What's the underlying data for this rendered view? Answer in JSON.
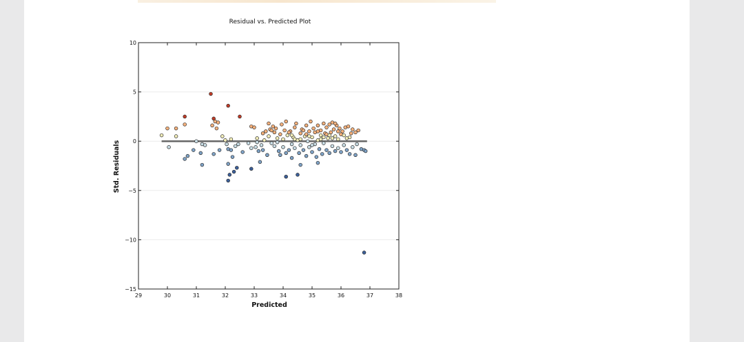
{
  "chart_data": {
    "type": "scatter",
    "title": "Residual vs. Predicted Plot",
    "xlabel": "Predicted",
    "ylabel": "Std. Residuals",
    "xlim": [
      29,
      38
    ],
    "ylim": [
      -15,
      10
    ],
    "xticks": [
      29,
      30,
      31,
      32,
      33,
      34,
      35,
      36,
      37,
      38
    ],
    "yticks": [
      10,
      5,
      0,
      -5,
      -10,
      -15
    ],
    "ytick_labels": [
      "10",
      "5",
      "0",
      "−5",
      "−10",
      "−15"
    ],
    "reference_line": {
      "y": 0,
      "x": [
        29.8,
        36.9
      ],
      "color": "#666666"
    },
    "color_scale": [
      "#3b5f9a",
      "#7fa3c7",
      "#c9dde5",
      "#f2edb9",
      "#f7b27d",
      "#c23b26"
    ],
    "points": [
      [
        29.8,
        0.6
      ],
      [
        30.0,
        1.3
      ],
      [
        30.05,
        -0.6
      ],
      [
        30.3,
        1.3
      ],
      [
        30.3,
        0.5
      ],
      [
        30.6,
        2.5
      ],
      [
        30.6,
        1.7
      ],
      [
        30.6,
        -1.8
      ],
      [
        30.7,
        -1.5
      ],
      [
        30.9,
        -0.9
      ],
      [
        31.0,
        0.0
      ],
      [
        31.15,
        -1.2
      ],
      [
        31.2,
        -2.4
      ],
      [
        31.2,
        -0.3
      ],
      [
        31.3,
        -0.4
      ],
      [
        31.5,
        4.8
      ],
      [
        31.55,
        1.6
      ],
      [
        31.6,
        -1.3
      ],
      [
        31.6,
        2.3
      ],
      [
        31.65,
        2.0
      ],
      [
        31.7,
        1.3
      ],
      [
        31.75,
        1.9
      ],
      [
        31.8,
        -0.9
      ],
      [
        31.9,
        0.5
      ],
      [
        32.0,
        0.1
      ],
      [
        32.05,
        -0.3
      ],
      [
        32.1,
        3.6
      ],
      [
        32.1,
        -0.8
      ],
      [
        32.1,
        -2.3
      ],
      [
        32.1,
        -4.0
      ],
      [
        32.15,
        -3.4
      ],
      [
        32.2,
        -0.9
      ],
      [
        32.2,
        0.2
      ],
      [
        32.25,
        -1.6
      ],
      [
        32.3,
        -3.1
      ],
      [
        32.35,
        -0.5
      ],
      [
        32.4,
        -2.7
      ],
      [
        32.45,
        -0.3
      ],
      [
        32.5,
        2.5
      ],
      [
        32.6,
        -1.1
      ],
      [
        32.8,
        -0.2
      ],
      [
        32.9,
        1.5
      ],
      [
        32.9,
        -0.7
      ],
      [
        32.9,
        -2.8
      ],
      [
        33.0,
        1.4
      ],
      [
        33.05,
        -0.6
      ],
      [
        33.1,
        0.3
      ],
      [
        33.1,
        -0.1
      ],
      [
        33.15,
        -1.0
      ],
      [
        33.2,
        -2.1
      ],
      [
        33.25,
        -0.4
      ],
      [
        33.3,
        0.8
      ],
      [
        33.3,
        -0.9
      ],
      [
        33.35,
        0.1
      ],
      [
        33.4,
        1.0
      ],
      [
        33.45,
        -1.4
      ],
      [
        33.5,
        1.8
      ],
      [
        33.5,
        0.5
      ],
      [
        33.55,
        1.2
      ],
      [
        33.6,
        -0.2
      ],
      [
        33.65,
        1.5
      ],
      [
        33.7,
        0.9
      ],
      [
        33.7,
        -0.5
      ],
      [
        33.75,
        1.3
      ],
      [
        33.8,
        0.3
      ],
      [
        33.85,
        -1.0
      ],
      [
        33.9,
        0.7
      ],
      [
        33.9,
        -1.4
      ],
      [
        33.95,
        1.7
      ],
      [
        34.0,
        0.2
      ],
      [
        34.0,
        -0.6
      ],
      [
        34.05,
        1.1
      ],
      [
        34.1,
        -1.2
      ],
      [
        34.1,
        2.0
      ],
      [
        34.15,
        0.6
      ],
      [
        34.2,
        -0.9
      ],
      [
        34.25,
        1.0
      ],
      [
        34.3,
        -0.3
      ],
      [
        34.3,
        -1.7
      ],
      [
        34.35,
        0.4
      ],
      [
        34.4,
        1.4
      ],
      [
        34.4,
        -0.7
      ],
      [
        34.45,
        1.8
      ],
      [
        34.5,
        0.1
      ],
      [
        34.55,
        -1.2
      ],
      [
        34.6,
        0.8
      ],
      [
        34.6,
        -0.4
      ],
      [
        34.65,
        1.2
      ],
      [
        34.7,
        -0.9
      ],
      [
        34.75,
        0.5
      ],
      [
        34.8,
        1.6
      ],
      [
        34.8,
        -1.5
      ],
      [
        34.85,
        0.0
      ],
      [
        34.9,
        1.0
      ],
      [
        34.9,
        -0.6
      ],
      [
        34.95,
        2.0
      ],
      [
        35.0,
        0.4
      ],
      [
        35.0,
        -1.1
      ],
      [
        35.05,
        1.3
      ],
      [
        35.1,
        -0.3
      ],
      [
        35.1,
        0.9
      ],
      [
        35.15,
        -1.6
      ],
      [
        35.2,
        1.6
      ],
      [
        35.2,
        0.1
      ],
      [
        35.25,
        -0.8
      ],
      [
        35.3,
        1.1
      ],
      [
        35.3,
        0.6
      ],
      [
        35.35,
        -1.3
      ],
      [
        35.4,
        1.8
      ],
      [
        35.4,
        -0.2
      ],
      [
        35.45,
        0.8
      ],
      [
        35.5,
        1.4
      ],
      [
        35.5,
        -0.9
      ],
      [
        35.55,
        0.3
      ],
      [
        35.6,
        1.7
      ],
      [
        35.6,
        -1.2
      ],
      [
        35.65,
        0.9
      ],
      [
        35.7,
        1.9
      ],
      [
        35.7,
        -0.5
      ],
      [
        35.75,
        1.2
      ],
      [
        35.8,
        0.5
      ],
      [
        35.8,
        -1.0
      ],
      [
        35.85,
        1.6
      ],
      [
        35.9,
        0.2
      ],
      [
        35.9,
        -0.7
      ],
      [
        35.95,
        1.3
      ],
      [
        36.0,
        0.7
      ],
      [
        36.0,
        -1.1
      ],
      [
        36.05,
        1.0
      ],
      [
        36.1,
        -0.4
      ],
      [
        36.15,
        1.4
      ],
      [
        36.2,
        0.3
      ],
      [
        36.2,
        -0.9
      ],
      [
        36.25,
        1.5
      ],
      [
        36.3,
        -1.3
      ],
      [
        36.35,
        0.8
      ],
      [
        36.4,
        1.2
      ],
      [
        36.4,
        -0.6
      ],
      [
        36.5,
        0.9
      ],
      [
        36.5,
        -1.4
      ],
      [
        36.55,
        -0.3
      ],
      [
        36.6,
        1.1
      ],
      [
        36.7,
        -0.8
      ],
      [
        36.8,
        -0.9
      ],
      [
        36.85,
        -1.0
      ],
      [
        34.1,
        -3.6
      ],
      [
        34.5,
        -3.4
      ],
      [
        34.6,
        -2.4
      ],
      [
        35.2,
        -2.2
      ],
      [
        36.8,
        -11.3
      ],
      [
        33.6,
        1.1
      ],
      [
        33.8,
        -0.1
      ],
      [
        34.2,
        0.9
      ],
      [
        34.4,
        0.2
      ],
      [
        34.7,
        1.1
      ],
      [
        34.9,
        0.5
      ],
      [
        35.0,
        -0.4
      ],
      [
        35.3,
        0.2
      ],
      [
        35.5,
        0.7
      ],
      [
        35.7,
        0.3
      ],
      [
        35.9,
        1.0
      ],
      [
        36.1,
        0.6
      ],
      [
        36.3,
        0.4
      ],
      [
        35.8,
        1.8
      ],
      [
        35.6,
        0.6
      ],
      [
        35.4,
        0.4
      ],
      [
        35.2,
        1.0
      ],
      [
        34.8,
        0.7
      ],
      [
        34.6,
        0.2
      ],
      [
        34.3,
        0.6
      ]
    ]
  }
}
